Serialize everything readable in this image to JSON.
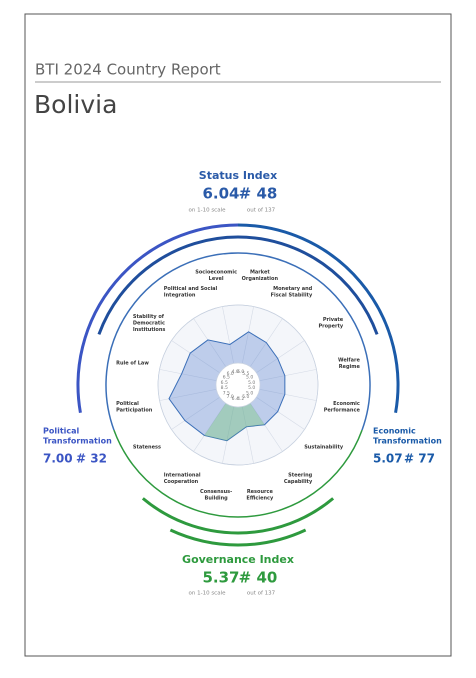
{
  "header": {
    "title": "BTI 2024 Country Report",
    "country": "Bolivia"
  },
  "status_index": {
    "title": "Status Index",
    "score": "6.04",
    "rank": "# 48",
    "scale_note": "on 1-10 scale",
    "rank_note": "out of 137"
  },
  "political": {
    "title_lines": [
      "Political",
      "Transformation"
    ],
    "score": "7.00",
    "rank": "# 32"
  },
  "economic": {
    "title_lines": [
      "Economic",
      "Transformation"
    ],
    "score": "5.07",
    "rank": "# 77"
  },
  "governance_index": {
    "title": "Governance Index",
    "score": "5.37",
    "rank": "# 40",
    "scale_note": "on 1-10 scale",
    "rank_note": "out of 137"
  },
  "radar": {
    "rlim": [
      1,
      10
    ],
    "criteria": [
      {
        "lines": [
          "Market",
          "Organization"
        ],
        "group": "economic"
      },
      {
        "lines": [
          "Monetary and",
          "Fiscal Stability"
        ],
        "group": "economic"
      },
      {
        "lines": [
          "Private",
          "Property"
        ],
        "group": "economic"
      },
      {
        "lines": [
          "Welfare",
          "Regime"
        ],
        "group": "economic"
      },
      {
        "lines": [
          "Economic",
          "Performance"
        ],
        "group": "economic"
      },
      {
        "lines": [
          "Sustainability"
        ],
        "group": "economic"
      },
      {
        "lines": [
          "Steering",
          "Capability"
        ],
        "group": "governance"
      },
      {
        "lines": [
          "Resource",
          "Efficiency"
        ],
        "group": "governance"
      },
      {
        "lines": [
          "Consensus-",
          "Building"
        ],
        "group": "governance"
      },
      {
        "lines": [
          "International",
          "Cooperation"
        ],
        "group": "governance"
      },
      {
        "lines": [
          "Stateness"
        ],
        "group": "political"
      },
      {
        "lines": [
          "Political",
          "Participation"
        ],
        "group": "political"
      },
      {
        "lines": [
          "Rule of Law"
        ],
        "group": "political"
      },
      {
        "lines": [
          "Stability of",
          "Democratic",
          "Institutions"
        ],
        "group": "political"
      },
      {
        "lines": [
          "Political and Social",
          "Integration"
        ],
        "group": "political"
      },
      {
        "lines": [
          "Socioeconomic",
          "Level"
        ],
        "group": "economic"
      }
    ],
    "values": [
      6,
      5.5,
      5,
      5,
      5,
      5,
      5,
      4.2,
      6.4,
      7,
      7.5,
      8.5,
      6.5,
      6.5,
      6,
      4
    ],
    "value_labels": [
      "6.0",
      "5.5",
      "5.0",
      "5.0",
      "5.0",
      "5.0",
      "5.0",
      "4.2",
      "6.4",
      "7.0",
      "7.5",
      "8.5",
      "6.5",
      "6.5",
      "6.0",
      "4.0"
    ]
  }
}
